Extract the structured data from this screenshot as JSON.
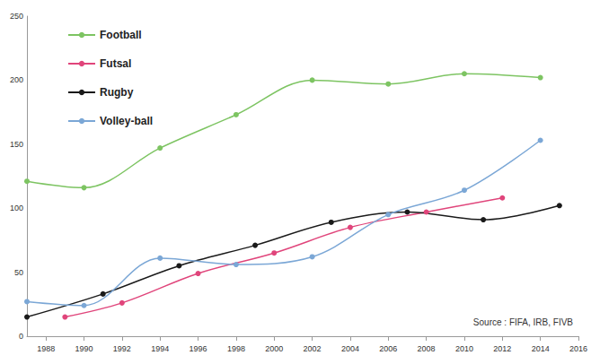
{
  "chart_data": {
    "type": "line",
    "series": [
      {
        "name": "Football",
        "color": "#7dc462",
        "x": [
          1987,
          1990,
          1994,
          1998,
          2002,
          2006,
          2010,
          2014
        ],
        "values": [
          121,
          116,
          147,
          173,
          200,
          197,
          205,
          202
        ]
      },
      {
        "name": "Futsal",
        "color": "#e0457b",
        "x": [
          1989,
          1992,
          1996,
          2000,
          2004,
          2008,
          2012
        ],
        "values": [
          15,
          26,
          49,
          65,
          85,
          97,
          108
        ]
      },
      {
        "name": "Rugby",
        "color": "#1a1a1a",
        "x": [
          1987,
          1991,
          1995,
          1999,
          2003,
          2007,
          2011,
          2015
        ],
        "values": [
          15,
          33,
          55,
          71,
          89,
          97,
          91,
          102
        ]
      },
      {
        "name": "Volley-ball",
        "color": "#7ba7d6",
        "x": [
          1987,
          1990,
          1994,
          1998,
          2002,
          2006,
          2010,
          2014
        ],
        "values": [
          27,
          24,
          61,
          56,
          62,
          95,
          114,
          153
        ]
      }
    ],
    "xlim": [
      1987,
      2016
    ],
    "xticks": [
      1988,
      1990,
      1992,
      1994,
      1996,
      1998,
      2000,
      2002,
      2004,
      2006,
      2008,
      2010,
      2012,
      2014,
      2016
    ],
    "ylim": [
      0,
      250
    ],
    "yticks": [
      0,
      50,
      100,
      150,
      200,
      250
    ],
    "annotations": [
      {
        "text": "Source : FIFA, IRB, FIVB"
      }
    ],
    "legend": "upper left",
    "marker": "circle",
    "grid": false
  }
}
